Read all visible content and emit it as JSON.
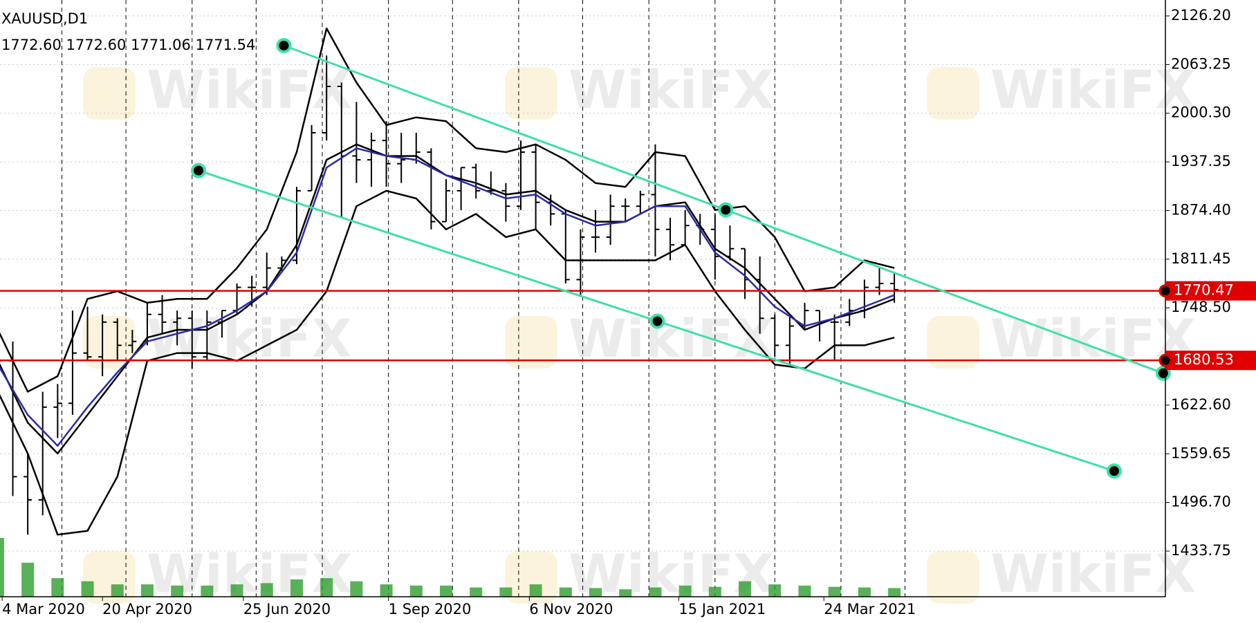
{
  "chart_data": {
    "type": "ohlc",
    "title": "XAUUSD,D1",
    "subtitle": "1772.60 1772.60 1771.06 1771.54",
    "watermark": "WikiFX",
    "xlim": [
      "2020-03-03",
      "2021-08-31"
    ],
    "ylim": [
      1374.7,
      2146.8
    ],
    "yticks": [
      {
        "value": 2126.2,
        "label": "2126.20"
      },
      {
        "value": 2063.25,
        "label": "2063.25"
      },
      {
        "value": 2000.3,
        "label": "2000.30"
      },
      {
        "value": 1937.35,
        "label": "1937.35"
      },
      {
        "value": 1874.4,
        "label": "1874.40"
      },
      {
        "value": 1811.45,
        "label": "1811.45"
      },
      {
        "value": 1748.5,
        "label": "1748.50"
      },
      {
        "value": 1622.6,
        "label": "1622.60"
      },
      {
        "value": 1559.65,
        "label": "1559.65"
      },
      {
        "value": 1496.7,
        "label": "1496.70"
      },
      {
        "value": 1433.75,
        "label": "1433.75"
      }
    ],
    "xticks": [
      {
        "value": "2020-03-04",
        "label": "4 Mar 2020"
      },
      {
        "value": "2020-04-20",
        "label": "20 Apr 2020"
      },
      {
        "value": "2020-06-25",
        "label": "25 Jun 2020"
      },
      {
        "value": "2020-09-01",
        "label": "1 Sep 2020"
      },
      {
        "value": "2020-11-06",
        "label": "6 Nov 2020"
      },
      {
        "value": "2021-01-15",
        "label": "15 Jan 2021"
      },
      {
        "value": "2021-03-24",
        "label": "24 Mar 2021"
      }
    ],
    "separators": [
      "2020-04-01",
      "2020-05-01",
      "2020-06-01",
      "2020-07-01",
      "2020-08-01",
      "2020-09-01",
      "2020-10-01",
      "2020-11-01",
      "2020-12-01",
      "2021-01-01",
      "2021-02-01",
      "2021-03-01",
      "2021-04-01",
      "2021-05-01"
    ],
    "grid": true,
    "color": "#000000",
    "x": [
      "2020-03-02",
      "2020-03-09",
      "2020-03-16",
      "2020-03-23",
      "2020-03-30",
      "2020-04-06",
      "2020-04-13",
      "2020-04-20",
      "2020-04-27",
      "2020-05-04",
      "2020-05-11",
      "2020-05-18",
      "2020-05-25",
      "2020-06-01",
      "2020-06-08",
      "2020-06-15",
      "2020-06-22",
      "2020-06-29",
      "2020-07-06",
      "2020-07-13",
      "2020-07-20",
      "2020-07-27",
      "2020-08-03",
      "2020-08-10",
      "2020-08-17",
      "2020-08-24",
      "2020-08-31",
      "2020-09-07",
      "2020-09-14",
      "2020-09-21",
      "2020-09-28",
      "2020-10-05",
      "2020-10-12",
      "2020-10-19",
      "2020-10-26",
      "2020-11-02",
      "2020-11-09",
      "2020-11-16",
      "2020-11-23",
      "2020-11-30",
      "2020-12-07",
      "2020-12-14",
      "2020-12-21",
      "2020-12-28",
      "2021-01-04",
      "2021-01-11",
      "2021-01-18",
      "2021-01-25",
      "2021-02-01",
      "2021-02-08",
      "2021-02-15",
      "2021-02-22",
      "2021-03-01",
      "2021-03-08",
      "2021-03-15",
      "2021-03-22",
      "2021-03-29",
      "2021-04-05",
      "2021-04-12",
      "2021-04-19",
      "2021-04-26"
    ],
    "open": [
      1640,
      1680,
      1530,
      1500,
      1620,
      1625,
      1690,
      1685,
      1730,
      1700,
      1705,
      1740,
      1730,
      1735,
      1685,
      1730,
      1745,
      1775,
      1775,
      1800,
      1810,
      1900,
      1975,
      2035,
      1945,
      1940,
      1965,
      1935,
      1940,
      1950,
      1860,
      1900,
      1930,
      1900,
      1900,
      1880,
      1950,
      1885,
      1870,
      1785,
      1840,
      1840,
      1880,
      1880,
      1895,
      1850,
      1830,
      1855,
      1850,
      1815,
      1825,
      1785,
      1735,
      1700,
      1725,
      1745,
      1730,
      1730,
      1745,
      1775,
      1780
    ],
    "high": [
      1705,
      1705,
      1560,
      1640,
      1650,
      1745,
      1750,
      1740,
      1735,
      1720,
      1755,
      1765,
      1745,
      1745,
      1745,
      1745,
      1780,
      1790,
      1820,
      1815,
      1905,
      1985,
      2075,
      2040,
      2015,
      1975,
      1990,
      1975,
      1975,
      1955,
      1915,
      1930,
      1935,
      1925,
      1910,
      1965,
      1960,
      1895,
      1875,
      1850,
      1875,
      1895,
      1890,
      1900,
      1960,
      1865,
      1875,
      1870,
      1870,
      1855,
      1825,
      1815,
      1740,
      1740,
      1755,
      1745,
      1740,
      1760,
      1785,
      1800,
      1795
    ],
    "low": [
      1630,
      1505,
      1455,
      1480,
      1580,
      1610,
      1680,
      1660,
      1680,
      1690,
      1700,
      1715,
      1700,
      1670,
      1680,
      1710,
      1740,
      1750,
      1765,
      1795,
      1805,
      1900,
      1965,
      1865,
      1910,
      1905,
      1905,
      1910,
      1935,
      1850,
      1860,
      1875,
      1890,
      1895,
      1860,
      1875,
      1850,
      1855,
      1780,
      1765,
      1820,
      1830,
      1860,
      1870,
      1815,
      1810,
      1830,
      1830,
      1785,
      1810,
      1760,
      1715,
      1685,
      1675,
      1720,
      1705,
      1680,
      1725,
      1735,
      1765,
      1755
    ],
    "close": [
      1680,
      1530,
      1500,
      1620,
      1625,
      1690,
      1685,
      1730,
      1700,
      1705,
      1740,
      1730,
      1735,
      1685,
      1730,
      1745,
      1775,
      1775,
      1800,
      1810,
      1900,
      1975,
      2035,
      1945,
      1940,
      1965,
      1935,
      1940,
      1950,
      1860,
      1900,
      1930,
      1900,
      1900,
      1880,
      1950,
      1885,
      1870,
      1785,
      1840,
      1840,
      1880,
      1880,
      1895,
      1850,
      1830,
      1855,
      1850,
      1815,
      1825,
      1785,
      1735,
      1700,
      1725,
      1745,
      1730,
      1730,
      1745,
      1775,
      1780,
      1772
    ],
    "indicator_x": [
      "2020-03-02",
      "2020-03-16",
      "2020-03-30",
      "2020-04-13",
      "2020-04-27",
      "2020-05-11",
      "2020-05-25",
      "2020-06-08",
      "2020-06-22",
      "2020-07-06",
      "2020-07-20",
      "2020-08-03",
      "2020-08-17",
      "2020-08-31",
      "2020-09-14",
      "2020-09-28",
      "2020-10-12",
      "2020-10-26",
      "2020-11-09",
      "2020-11-23",
      "2020-12-07",
      "2020-12-21",
      "2021-01-04",
      "2021-01-18",
      "2021-02-01",
      "2021-02-15",
      "2021-03-01",
      "2021-03-15",
      "2021-03-29",
      "2021-04-12",
      "2021-04-26"
    ],
    "indicators": [
      {
        "color": "#000000",
        "values": [
          1720,
          1640,
          1660,
          1760,
          1770,
          1755,
          1760,
          1760,
          1800,
          1850,
          1950,
          2110,
          2040,
          1985,
          1995,
          1990,
          1955,
          1950,
          1960,
          1940,
          1910,
          1905,
          1950,
          1945,
          1875,
          1880,
          1840,
          1770,
          1775,
          1810,
          1800
        ]
      },
      {
        "color": "#000000",
        "values": [
          1640,
          1560,
          1455,
          1460,
          1530,
          1680,
          1690,
          1690,
          1680,
          1700,
          1720,
          1770,
          1880,
          1900,
          1890,
          1850,
          1870,
          1840,
          1850,
          1810,
          1810,
          1810,
          1810,
          1830,
          1770,
          1720,
          1675,
          1670,
          1700,
          1700,
          1710
        ]
      },
      {
        "color": "#000000",
        "values": [
          1680,
          1600,
          1560,
          1610,
          1660,
          1710,
          1720,
          1720,
          1740,
          1770,
          1830,
          1940,
          1960,
          1945,
          1945,
          1920,
          1910,
          1895,
          1900,
          1875,
          1860,
          1860,
          1880,
          1885,
          1825,
          1800,
          1760,
          1720,
          1735,
          1745,
          1760
        ]
      },
      {
        "color": "#2a2aa8",
        "values": [
          1675,
          1610,
          1570,
          1620,
          1665,
          1705,
          1715,
          1725,
          1745,
          1770,
          1820,
          1930,
          1955,
          1945,
          1940,
          1920,
          1905,
          1890,
          1895,
          1870,
          1855,
          1860,
          1880,
          1880,
          1820,
          1790,
          1750,
          1725,
          1735,
          1750,
          1765
        ]
      }
    ],
    "volume": {
      "color": "#2e9e2e",
      "values": [
        95,
        55,
        30,
        25,
        20,
        20,
        18,
        18,
        20,
        22,
        28,
        30,
        25,
        20,
        18,
        18,
        15,
        15,
        20,
        15,
        14,
        12,
        15,
        18,
        16,
        25,
        20,
        18,
        16,
        15,
        14
      ]
    },
    "levels": [
      {
        "value": 1770.47,
        "color": "#e00000"
      },
      {
        "value": 1680.53,
        "color": "#e00000"
      }
    ],
    "channels": [
      {
        "color": "#3ee0a8",
        "x": [
          "2020-07-14",
          "2021-02-06",
          "2021-08-30"
        ],
        "y": [
          2087.8,
          1875.3,
          1663.9
        ]
      },
      {
        "color": "#3ee0a8",
        "x": [
          "2020-06-04",
          "2021-01-05",
          "2021-08-07"
        ],
        "y": [
          1926.1,
          1731.2,
          1537.4
        ]
      }
    ]
  }
}
